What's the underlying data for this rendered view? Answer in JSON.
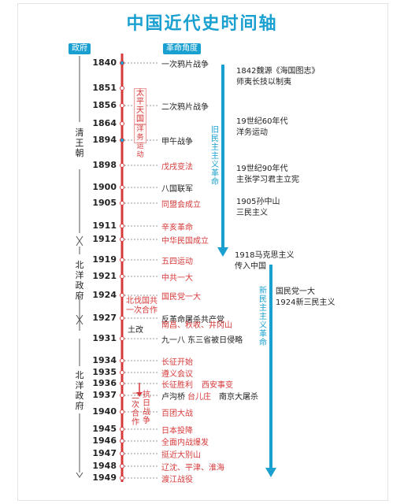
{
  "title": "中国近代史时间轴",
  "tags": {
    "gov": "政府",
    "rev": "革命角度"
  },
  "timeline": [
    {
      "year": "1840",
      "event": "一次鸦片战争",
      "red": false
    },
    {
      "year": "1851",
      "event": "",
      "red": false
    },
    {
      "year": "1856",
      "event": "二次鸦片战争",
      "red": false
    },
    {
      "year": "1864",
      "event": "",
      "red": false
    },
    {
      "year": "1894",
      "event": "甲午战争",
      "red": false
    },
    {
      "year": "1898",
      "event": "戊戌变法",
      "red": true
    },
    {
      "year": "1900",
      "event": "八国联军",
      "red": false
    },
    {
      "year": "1905",
      "event": "同盟会成立",
      "red": true
    },
    {
      "year": "1911",
      "event": "辛亥革命",
      "red": true
    },
    {
      "year": "1912",
      "event": "中华民国成立",
      "red": true
    },
    {
      "year": "1919",
      "event": "五四运动",
      "red": true
    },
    {
      "year": "1921",
      "event": "中共一大",
      "red": true
    },
    {
      "year": "1924",
      "event": "国民党一大",
      "red": true
    },
    {
      "year": "1927",
      "event": "反革命屠杀共产党",
      "red": false
    },
    {
      "year": "1931",
      "event": "九一八 东三省被日侵略",
      "red": false
    },
    {
      "year": "1934",
      "event": "长征开始",
      "red": true
    },
    {
      "year": "1935",
      "event": "遵义会议",
      "red": true
    },
    {
      "year": "1936",
      "event": "长征胜利",
      "red": true
    },
    {
      "year": "1937",
      "event": "卢沟桥",
      "red": false
    },
    {
      "year": "1940",
      "event": "百团大战",
      "red": true
    },
    {
      "year": "1945",
      "event": "日本投降",
      "red": true
    },
    {
      "year": "1946",
      "event": "全面内战爆发",
      "red": true
    },
    {
      "year": "1947",
      "event": "挺近大别山",
      "red": true
    },
    {
      "year": "1948",
      "event": "辽沈、平津、淮海",
      "red": true
    },
    {
      "year": "1949",
      "event": "渡江战役",
      "red": true
    }
  ],
  "extra": {
    "e1927b": "南昌、秋收、井冈山",
    "tugai": "土改",
    "xian": "西安事变",
    "tai": "台儿庄",
    "nanjing": "南京大屠杀"
  },
  "side_labels": {
    "taiping": "太平天国",
    "yangwu": "洋务运动",
    "beifa": "北伐国共一次合作",
    "kangri": "抗日战争",
    "second": "二次合作",
    "old_rev": "旧民主主义革命",
    "new_rev": "新民主主义革命"
  },
  "governments": {
    "qing": "清王朝",
    "beiyang1": "北洋政府",
    "beiyang2": "北洋政府"
  },
  "notes": {
    "n1842": [
      "1842魏源《海国图志》",
      "师夷长技以制夷"
    ],
    "n60s": [
      "19世纪60年代",
      "洋务运动"
    ],
    "n90s": [
      "19世纪90年代",
      "主张学习君主立宪"
    ],
    "n1905": [
      "1905孙中山",
      "三民主义"
    ],
    "n1918": [
      "1918马克思主义",
      "传入中国"
    ],
    "n1924": [
      "国民党一大",
      "1924新三民主义"
    ]
  },
  "colors": {
    "axis": "#d6393a",
    "accent": "#1aa0d0",
    "red_text": "#d6393a"
  }
}
